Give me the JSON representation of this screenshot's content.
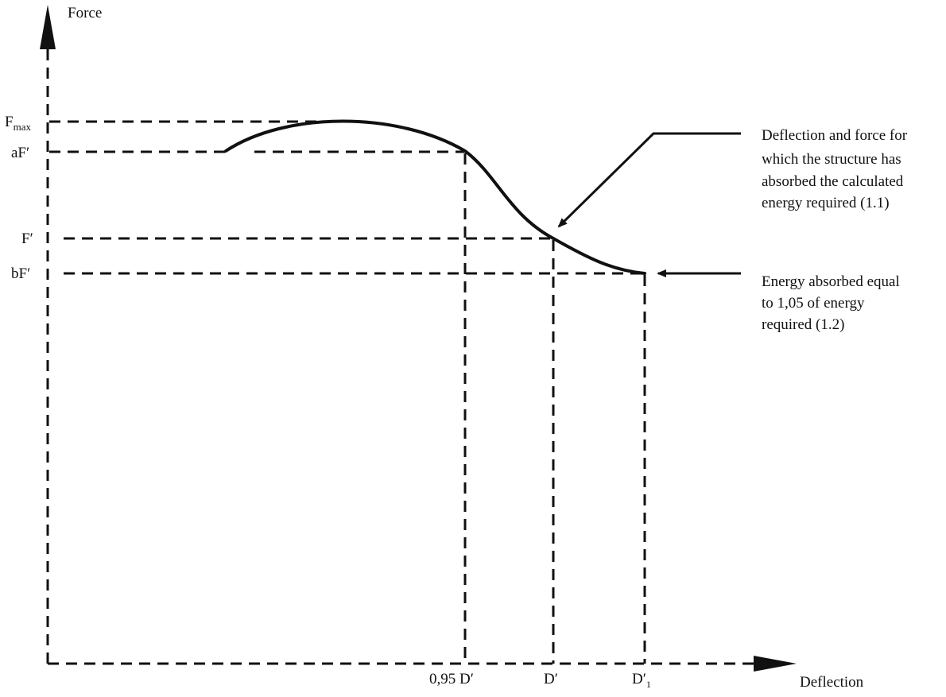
{
  "diagram": {
    "y_axis_label": "Force",
    "x_axis_label": "Deflection",
    "y_levels": {
      "fmax": {
        "main": "F",
        "sub": "max"
      },
      "af": "aF′",
      "f": "F′",
      "bf": "bF′"
    },
    "x_levels": {
      "d095": "0,95 D′",
      "d": "D′",
      "d1": {
        "main": "D′",
        "sub": "1"
      }
    },
    "annotations": {
      "deflection_force": [
        "Deflection and force for",
        "which the structure has",
        "absorbed the calculated",
        "energy required (1.1)"
      ],
      "energy_absorbed": [
        "Energy absorbed equal",
        "to 1,05 of energy",
        "required (1.2)"
      ]
    }
  }
}
